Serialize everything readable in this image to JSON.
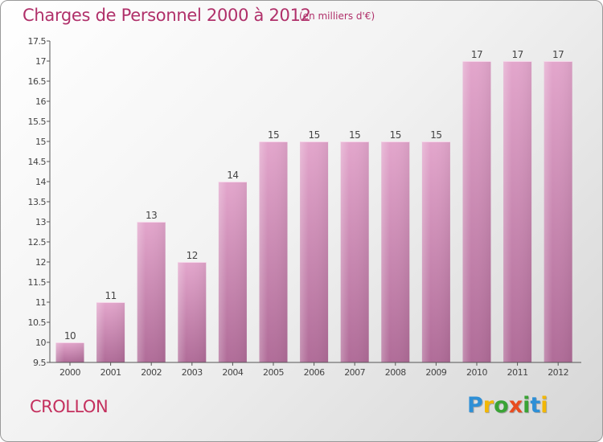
{
  "header": {
    "title": "Charges de Personnel 2000 à 2012",
    "subtitle": "(en milliers d'€)"
  },
  "footer": {
    "commune": "CROLLON",
    "brand": "Proxiti",
    "brand_letters": [
      {
        "ch": "P",
        "color": "#2e8fd6"
      },
      {
        "ch": "r",
        "color": "#f2b705"
      },
      {
        "ch": "o",
        "color": "#3aa335"
      },
      {
        "ch": "x",
        "color": "#e84c1f"
      },
      {
        "ch": "i",
        "color": "#3aa335"
      },
      {
        "ch": "t",
        "color": "#2e8fd6"
      },
      {
        "ch": "i",
        "color": "#f2b705"
      }
    ]
  },
  "colors": {
    "bar_top": "#e3a6cc",
    "bar_bottom": "#b06c98",
    "text_accent": "#b0306a"
  },
  "chart_data": {
    "type": "bar",
    "categories": [
      "2000",
      "2001",
      "2002",
      "2003",
      "2004",
      "2005",
      "2006",
      "2007",
      "2008",
      "2009",
      "2010",
      "2011",
      "2012"
    ],
    "values": [
      10,
      11,
      13,
      12,
      14,
      15,
      15,
      15,
      15,
      15,
      17,
      17,
      17
    ],
    "data_labels": [
      "10",
      "11",
      "13",
      "12",
      "14",
      "15",
      "15",
      "15",
      "15",
      "15",
      "17",
      "17",
      "17"
    ],
    "yticks": [
      "9.5",
      "10",
      "10.5",
      "11",
      "11.5",
      "12",
      "12.5",
      "13",
      "13.5",
      "14",
      "14.5",
      "15",
      "15.5",
      "16",
      "16.5",
      "17",
      "17.5"
    ],
    "ylim": [
      9.5,
      17.5
    ],
    "grid": false,
    "title": "Charges de Personnel 2000 à 2012",
    "xlabel": "",
    "ylabel": ""
  }
}
